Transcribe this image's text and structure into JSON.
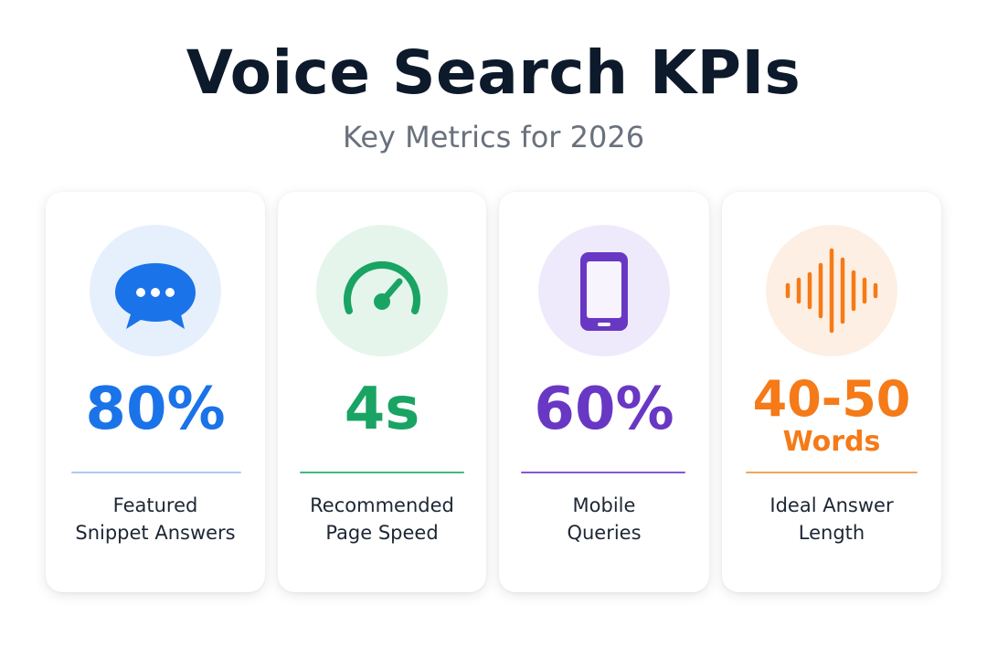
{
  "header": {
    "title": "Voice Search KPIs",
    "subtitle": "Key Metrics for 2026"
  },
  "cards": [
    {
      "icon": "chat-bubble-icon",
      "value": "80%",
      "label_line1": "Featured",
      "label_line2": "Snippet Answers",
      "accent": "#1a73e8"
    },
    {
      "icon": "speedometer-icon",
      "value": "4s",
      "label_line1": "Recommended",
      "label_line2": "Page Speed",
      "accent": "#19a463"
    },
    {
      "icon": "smartphone-icon",
      "value": "60%",
      "label_line1": "Mobile",
      "label_line2": "Queries",
      "accent": "#6838c4"
    },
    {
      "icon": "sound-wave-icon",
      "value": "40-50",
      "unit": "Words",
      "label_line1": "Ideal Answer",
      "label_line2": "Length",
      "accent": "#f57a18"
    }
  ]
}
